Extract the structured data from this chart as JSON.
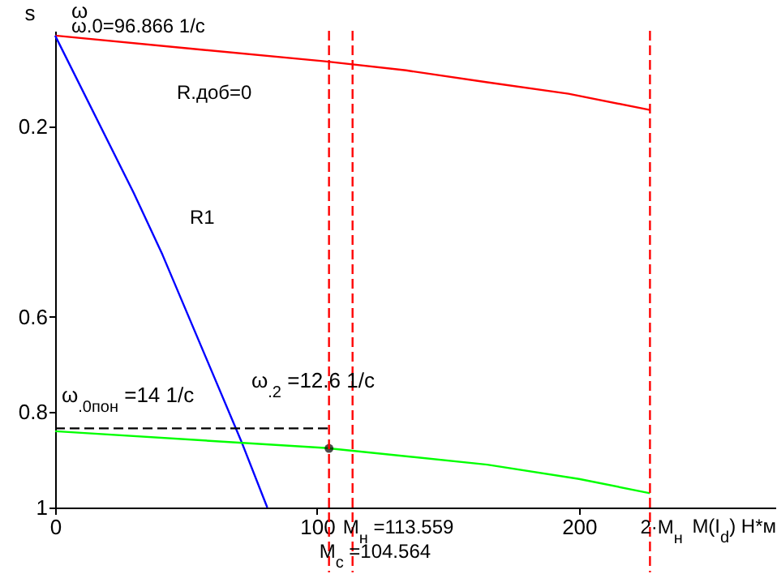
{
  "chart_data": {
    "type": "line",
    "ylabel": "s",
    "xlabel": "M(I$_{d}$) Н*м",
    "xlim": [
      0,
      275
    ],
    "ylim": [
      1,
      0
    ],
    "xticks": [
      0,
      100,
      200
    ],
    "yticks": [
      0.2,
      0.6,
      0.8,
      1
    ],
    "grid": false,
    "series": [
      {
        "color": "#ff0000",
        "x": [
          0,
          51,
          103,
          134,
          165,
          196,
          227.118
        ],
        "values": [
          0.01,
          0.037,
          0.064,
          0.083,
          0.108,
          0.132,
          0.166
        ]
      },
      {
        "color": "#0000ff",
        "x": [
          0,
          30,
          41,
          71,
          81
        ],
        "values": [
          0.01,
          0.34,
          0.47,
          0.86,
          1
        ]
      },
      {
        "color": "#00ff00",
        "x": [
          0,
          103,
          165,
          200,
          227.118
        ],
        "values": [
          0.84,
          0.875,
          0.91,
          0.94,
          0.97
        ]
      },
      {
        "color": "#000000",
        "line_style": "dashed",
        "x": [
          0,
          104.564
        ],
        "values": [
          0.834,
          0.834
        ]
      },
      {
        "type": "scatter",
        "marker": "circle",
        "color": "#000000",
        "x": [
          104.564
        ],
        "values": [
          0.876
        ]
      }
    ],
    "ref_lines": [
      {
        "axis": "x",
        "value": 113.559,
        "label": "M$_{н}$ =113.559",
        "color": "#ff0000",
        "line_style": "dashed"
      },
      {
        "axis": "x",
        "value": 104.564,
        "label": "M$_{с}$ =104.564",
        "color": "#ff0000",
        "line_style": "dashed"
      },
      {
        "axis": "x",
        "value": 227.118,
        "label": "2·M$_{н}$",
        "color": "#ff0000",
        "line_style": "dashed"
      }
    ],
    "annotations": [
      "ω",
      "ω.0=96.866 1/с",
      "R.доб=0",
      "R1",
      "ω$_{.0пон}$ =14 1/с",
      "ω$_{.2}$ =12.6 1/с"
    ]
  }
}
